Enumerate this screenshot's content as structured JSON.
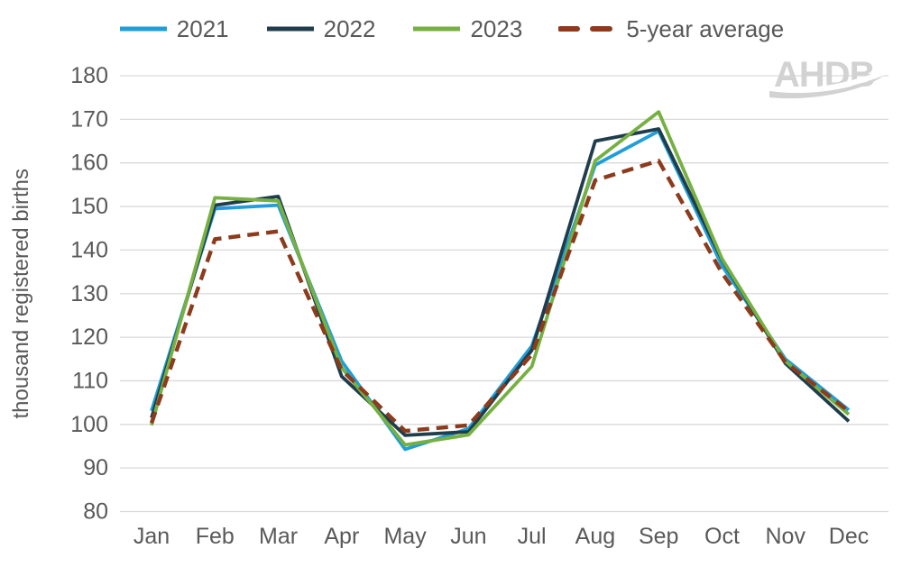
{
  "logo": {
    "text": "AHDB",
    "color": "#d2d2d2"
  },
  "colors": {
    "axis_text": "#595959",
    "gridline": "#d9d9d9",
    "background": "#ffffff"
  },
  "chart_data": {
    "type": "line",
    "title": "",
    "xlabel": "",
    "ylabel": "thousand registered births",
    "ylim": [
      80,
      180
    ],
    "yticks": [
      80,
      90,
      100,
      110,
      120,
      130,
      140,
      150,
      160,
      170,
      180
    ],
    "grid": "horizontal-only",
    "legend_position": "top",
    "categories": [
      "Jan",
      "Feb",
      "Mar",
      "Apr",
      "May",
      "Jun",
      "Jul",
      "Aug",
      "Sep",
      "Oct",
      "Nov",
      "Dec"
    ],
    "series": [
      {
        "name": "2021",
        "color": "#1f9ed9",
        "style": "solid",
        "values": [
          103.1,
          149.5,
          150.3,
          114.5,
          94.3,
          99.0,
          118.0,
          159.5,
          167.3,
          136.4,
          115.0,
          103.3
        ]
      },
      {
        "name": "2022",
        "color": "#1f3d4c",
        "style": "solid",
        "values": [
          101.5,
          150.3,
          152.3,
          111.0,
          97.5,
          98.3,
          117.0,
          165.0,
          167.8,
          137.8,
          114.0,
          100.7
        ]
      },
      {
        "name": "2023",
        "color": "#76b041",
        "style": "solid",
        "values": [
          99.8,
          152.0,
          151.3,
          113.0,
          95.3,
          97.6,
          113.3,
          160.5,
          171.7,
          138.0,
          114.5,
          102.3
        ]
      },
      {
        "name": "5-year average",
        "color": "#8c3b1c",
        "style": "dashed",
        "values": [
          100.3,
          142.5,
          144.3,
          112.5,
          98.5,
          99.8,
          116.0,
          156.0,
          160.5,
          134.7,
          114.3,
          103.0
        ]
      }
    ]
  }
}
